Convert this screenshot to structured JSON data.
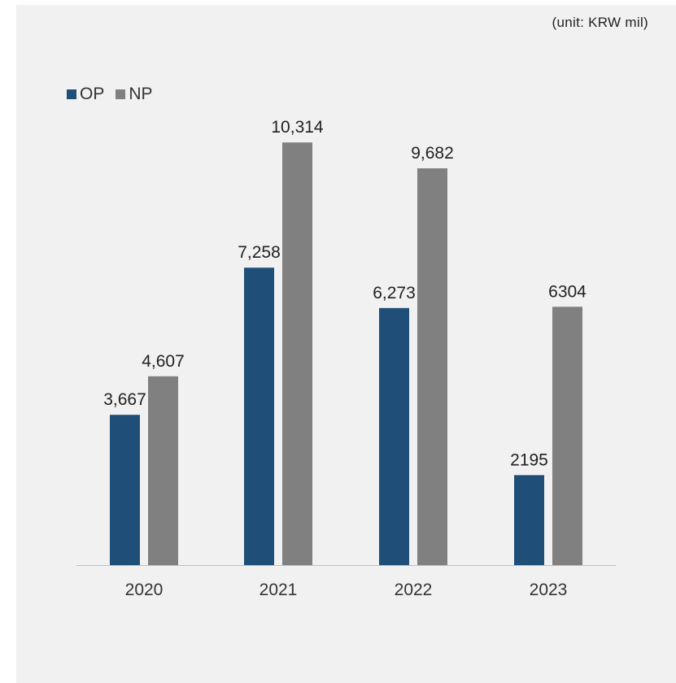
{
  "unit_note": "(unit: KRW mil)",
  "chart_data": {
    "type": "bar",
    "categories": [
      "2020",
      "2021",
      "2022",
      "2023"
    ],
    "series": [
      {
        "name": "OP",
        "color": "#1f4e79",
        "values": [
          3667,
          7258,
          6273,
          2195
        ],
        "labels": [
          "3,667",
          "7,258",
          "6,273",
          "2195"
        ]
      },
      {
        "name": "NP",
        "color": "#808080",
        "values": [
          4607,
          10314,
          9682,
          6304
        ],
        "labels": [
          "4,607",
          "10,314",
          "9,682",
          "6304"
        ]
      }
    ],
    "ylim": [
      0,
      12500
    ],
    "grid": false,
    "legend_position": "top-left"
  }
}
